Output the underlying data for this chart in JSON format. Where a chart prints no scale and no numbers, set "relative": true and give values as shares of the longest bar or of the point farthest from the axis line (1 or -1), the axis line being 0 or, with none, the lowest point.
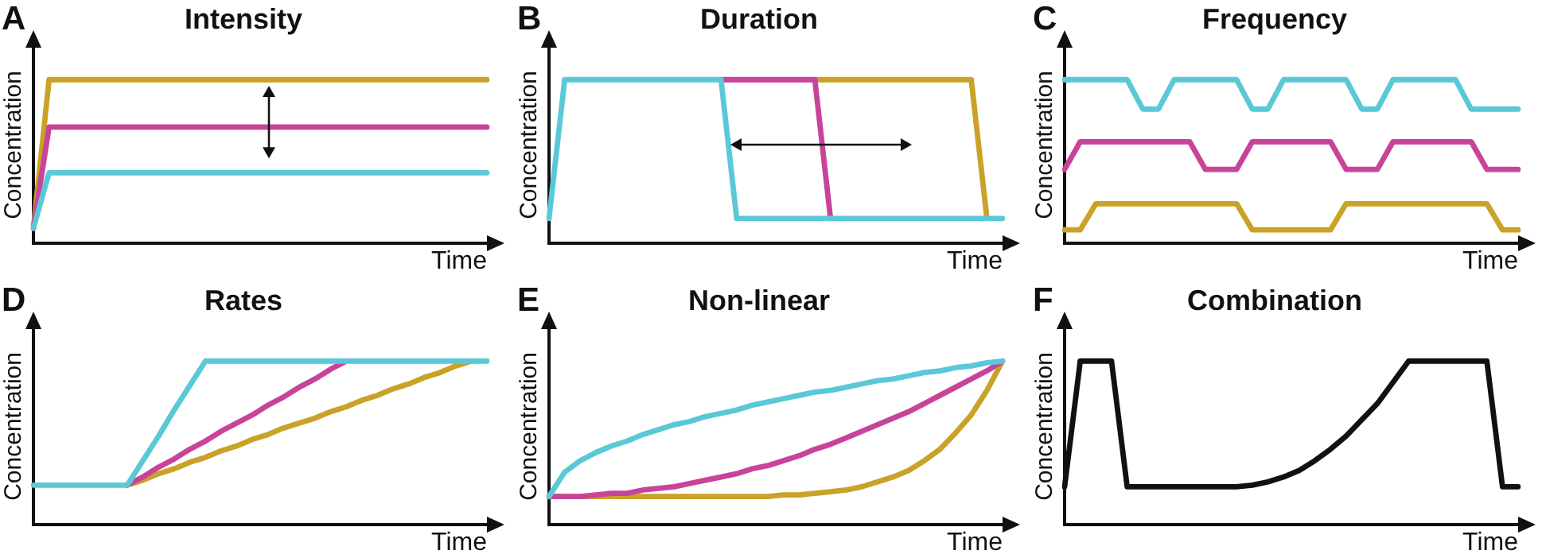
{
  "chart_data": [
    {
      "type": "line",
      "title": "Intensity",
      "annotations": [
        "A"
      ],
      "xlabel": "Time",
      "ylabel": "Concentration",
      "relative": true,
      "tick_labels": false,
      "marker": "none",
      "categories": [
        null,
        null,
        null,
        null,
        null,
        null,
        null,
        null,
        null,
        null,
        null,
        null,
        null,
        null,
        null,
        null,
        null,
        null,
        null,
        null,
        null,
        null,
        null,
        null,
        null,
        null,
        null,
        null,
        null,
        null
      ],
      "series": [
        {
          "color": "#5bc8d8",
          "values": [
            0.09,
            0.43,
            0.43,
            0.43,
            0.43,
            0.43,
            0.43,
            0.43,
            0.43,
            0.43,
            0.43,
            0.43,
            0.43,
            0.43,
            0.43,
            0.43,
            0.43,
            0.43,
            0.43,
            0.43,
            0.43,
            0.43,
            0.43,
            0.43,
            0.43,
            0.43,
            0.43,
            0.43,
            0.43,
            0.43
          ]
        },
        {
          "color": "#c8449a",
          "values": [
            0.09,
            0.71,
            0.71,
            0.71,
            0.71,
            0.71,
            0.71,
            0.71,
            0.71,
            0.71,
            0.71,
            0.71,
            0.71,
            0.71,
            0.71,
            0.71,
            0.71,
            0.71,
            0.71,
            0.71,
            0.71,
            0.71,
            0.71,
            0.71,
            0.71,
            0.71,
            0.71,
            0.71,
            0.71,
            0.71
          ]
        },
        {
          "color": "#c9a227",
          "values": [
            0.09,
            1,
            1,
            1,
            1,
            1,
            1,
            1,
            1,
            1,
            1,
            1,
            1,
            1,
            1,
            1,
            1,
            1,
            1,
            1,
            1,
            1,
            1,
            1,
            1,
            1,
            1,
            1,
            1,
            1
          ]
        }
      ]
    },
    {
      "type": "line",
      "title": "Duration",
      "annotations": [
        "B"
      ],
      "xlabel": "Time",
      "ylabel": "Concentration",
      "relative": true,
      "tick_labels": false,
      "marker": "none",
      "categories": [
        null,
        null,
        null,
        null,
        null,
        null,
        null,
        null,
        null,
        null,
        null,
        null,
        null,
        null,
        null,
        null,
        null,
        null,
        null,
        null,
        null,
        null,
        null,
        null,
        null,
        null,
        null,
        null,
        null,
        null
      ],
      "series": [
        {
          "color": "#5bc8d8",
          "values": [
            0.15,
            1,
            1,
            1,
            1,
            1,
            1,
            1,
            1,
            1,
            1,
            1,
            0.15,
            0.15,
            0.15,
            0.15,
            0.15,
            0.15,
            0.15,
            0.15,
            0.15,
            0.15,
            0.15,
            0.15,
            0.15,
            0.15,
            0.15,
            0.15,
            0.15,
            0.15
          ]
        },
        {
          "color": "#c8449a",
          "values": [
            null,
            null,
            null,
            null,
            null,
            null,
            null,
            null,
            null,
            null,
            null,
            1,
            1,
            1,
            1,
            1,
            1,
            1,
            0.15,
            null,
            null,
            null,
            null,
            null,
            null,
            null,
            null,
            null,
            null,
            null
          ]
        },
        {
          "color": "#c9a227",
          "values": [
            null,
            null,
            null,
            null,
            null,
            null,
            null,
            null,
            null,
            null,
            null,
            null,
            null,
            null,
            null,
            null,
            null,
            1,
            1,
            1,
            1,
            1,
            1,
            1,
            1,
            1,
            1,
            1,
            0.15,
            null
          ]
        }
      ]
    },
    {
      "type": "line",
      "title": "Frequency",
      "annotations": [
        "C"
      ],
      "xlabel": "Time",
      "ylabel": "Concentration",
      "relative": true,
      "tick_labels": false,
      "marker": "none",
      "categories": [
        null,
        null,
        null,
        null,
        null,
        null,
        null,
        null,
        null,
        null,
        null,
        null,
        null,
        null,
        null,
        null,
        null,
        null,
        null,
        null,
        null,
        null,
        null,
        null,
        null,
        null,
        null,
        null,
        null,
        null
      ],
      "series": [
        {
          "color": "#5bc8d8",
          "values": [
            1,
            1,
            1,
            1,
            1,
            0.82,
            0.82,
            1,
            1,
            1,
            1,
            1,
            0.82,
            0.82,
            1,
            1,
            1,
            1,
            1,
            0.82,
            0.82,
            1,
            1,
            1,
            1,
            1,
            0.82,
            0.82,
            0.82,
            0.82
          ]
        },
        {
          "color": "#c8449a",
          "values": [
            0.45,
            0.62,
            0.62,
            0.62,
            0.62,
            0.62,
            0.62,
            0.62,
            0.62,
            0.45,
            0.45,
            0.45,
            0.62,
            0.62,
            0.62,
            0.62,
            0.62,
            0.62,
            0.45,
            0.45,
            0.45,
            0.62,
            0.62,
            0.62,
            0.62,
            0.62,
            0.62,
            0.45,
            0.45,
            0.45
          ]
        },
        {
          "color": "#c9a227",
          "values": [
            0.08,
            0.08,
            0.24,
            0.24,
            0.24,
            0.24,
            0.24,
            0.24,
            0.24,
            0.24,
            0.24,
            0.24,
            0.08,
            0.08,
            0.08,
            0.08,
            0.08,
            0.08,
            0.24,
            0.24,
            0.24,
            0.24,
            0.24,
            0.24,
            0.24,
            0.24,
            0.24,
            0.24,
            0.08,
            0.08
          ]
        }
      ]
    },
    {
      "type": "line",
      "title": "Rates",
      "annotations": [
        "D"
      ],
      "xlabel": "Time",
      "ylabel": "Concentration",
      "relative": true,
      "tick_labels": false,
      "marker": "none",
      "categories": [
        null,
        null,
        null,
        null,
        null,
        null,
        null,
        null,
        null,
        null,
        null,
        null,
        null,
        null,
        null,
        null,
        null,
        null,
        null,
        null,
        null,
        null,
        null,
        null,
        null,
        null,
        null,
        null,
        null,
        null
      ],
      "series": [
        {
          "color": "#5bc8d8",
          "values": [
            0.24,
            0.24,
            0.24,
            0.24,
            0.24,
            0.24,
            0.24,
            0.39,
            0.54,
            0.7,
            0.85,
            1,
            1,
            1,
            1,
            1,
            1,
            1,
            1,
            1,
            1,
            1,
            1,
            1,
            1,
            1,
            1,
            1,
            1,
            1
          ]
        },
        {
          "color": "#c8449a",
          "values": [
            null,
            null,
            null,
            null,
            null,
            null,
            0.24,
            0.29,
            0.35,
            0.4,
            0.46,
            0.51,
            0.57,
            0.62,
            0.67,
            0.73,
            0.78,
            0.84,
            0.89,
            0.95,
            1,
            null,
            null,
            null,
            null,
            null,
            null,
            null,
            null,
            null
          ]
        },
        {
          "color": "#c9a227",
          "values": [
            null,
            null,
            null,
            null,
            null,
            null,
            0.24,
            0.27,
            0.31,
            0.34,
            0.38,
            0.41,
            0.45,
            0.48,
            0.52,
            0.55,
            0.59,
            0.62,
            0.65,
            0.69,
            0.72,
            0.76,
            0.79,
            0.83,
            0.86,
            0.9,
            0.93,
            0.97,
            1,
            null
          ]
        }
      ]
    },
    {
      "type": "line",
      "title": "Non-linear",
      "annotations": [
        "E"
      ],
      "xlabel": "Time",
      "ylabel": "Concentration",
      "relative": true,
      "tick_labels": false,
      "marker": "none",
      "categories": [
        null,
        null,
        null,
        null,
        null,
        null,
        null,
        null,
        null,
        null,
        null,
        null,
        null,
        null,
        null,
        null,
        null,
        null,
        null,
        null,
        null,
        null,
        null,
        null,
        null,
        null,
        null,
        null,
        null,
        null
      ],
      "series": [
        {
          "color": "#5bc8d8",
          "values": [
            0.17,
            0.32,
            0.39,
            0.44,
            0.48,
            0.51,
            0.55,
            0.58,
            0.61,
            0.63,
            0.66,
            0.68,
            0.7,
            0.73,
            0.75,
            0.77,
            0.79,
            0.81,
            0.82,
            0.84,
            0.86,
            0.88,
            0.89,
            0.91,
            0.93,
            0.94,
            0.96,
            0.97,
            0.99,
            1
          ]
        },
        {
          "color": "#c8449a",
          "values": [
            0.17,
            0.17,
            0.17,
            0.18,
            0.19,
            0.19,
            0.21,
            0.22,
            0.23,
            0.25,
            0.27,
            0.29,
            0.31,
            0.34,
            0.36,
            0.39,
            0.42,
            0.46,
            0.49,
            0.53,
            0.57,
            0.61,
            0.65,
            0.69,
            0.74,
            0.79,
            0.84,
            0.89,
            0.94,
            1
          ]
        },
        {
          "color": "#c9a227",
          "values": [
            0.17,
            0.17,
            0.17,
            0.17,
            0.17,
            0.17,
            0.17,
            0.17,
            0.17,
            0.17,
            0.17,
            0.17,
            0.17,
            0.17,
            0.17,
            0.18,
            0.18,
            0.19,
            0.2,
            0.21,
            0.23,
            0.26,
            0.29,
            0.33,
            0.39,
            0.46,
            0.56,
            0.67,
            0.82,
            1
          ]
        }
      ]
    },
    {
      "type": "line",
      "title": "Combination",
      "annotations": [
        "F"
      ],
      "xlabel": "Time",
      "ylabel": "Concentration",
      "relative": true,
      "tick_labels": false,
      "marker": "none",
      "categories": [
        null,
        null,
        null,
        null,
        null,
        null,
        null,
        null,
        null,
        null,
        null,
        null,
        null,
        null,
        null,
        null,
        null,
        null,
        null,
        null,
        null,
        null,
        null,
        null,
        null,
        null,
        null,
        null,
        null,
        null
      ],
      "series": [
        {
          "color": "#111111",
          "values": [
            0.23,
            1,
            1,
            1,
            0.23,
            0.23,
            0.23,
            0.23,
            0.23,
            0.23,
            0.23,
            0.23,
            0.24,
            0.26,
            0.29,
            0.33,
            0.39,
            0.46,
            0.54,
            0.64,
            0.74,
            0.87,
            1,
            1,
            1,
            1,
            1,
            1,
            0.23,
            0.23
          ]
        }
      ]
    }
  ]
}
